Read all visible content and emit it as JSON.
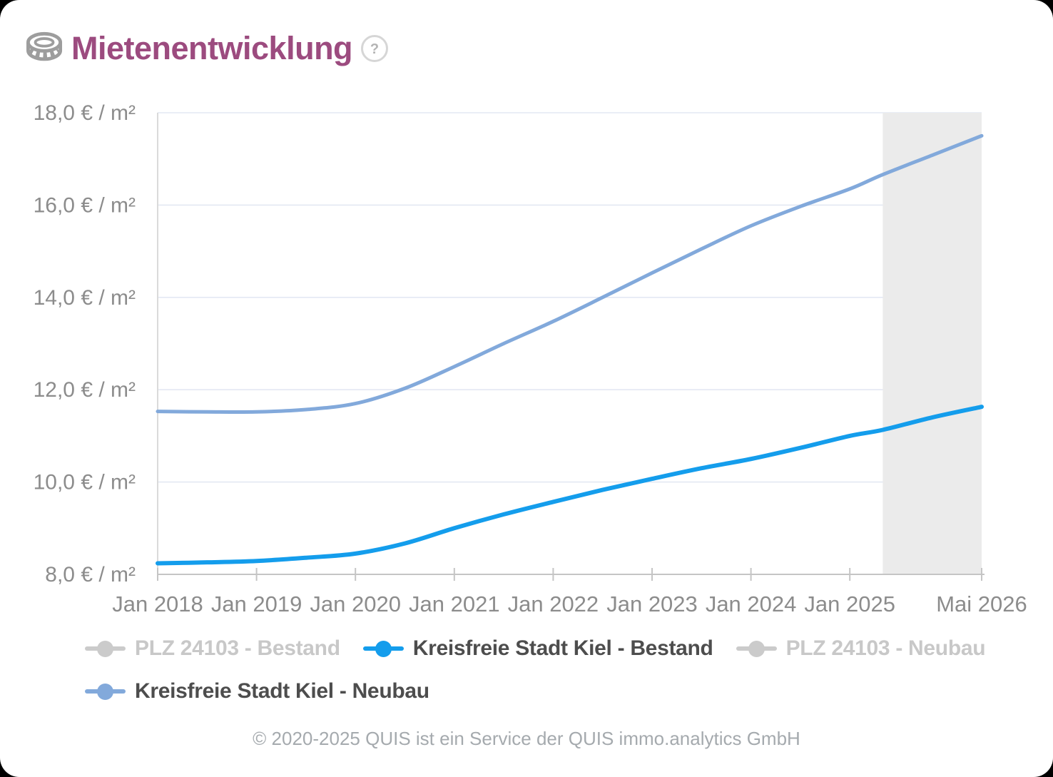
{
  "header": {
    "title": "Mietenentwicklung",
    "icon": "coin-icon",
    "help_icon": "help-icon"
  },
  "footer": {
    "copyright": "© 2020-2025 QUIS ist ein Service der QUIS immo.analytics GmbH"
  },
  "colors": {
    "title": "#9c4b7f",
    "icon_gray": "#9d9d9d",
    "help_ring": "#d6d6d6",
    "help_mark": "#b4b4b4",
    "axis_text": "#8c8c8c",
    "gridline": "#e3e8f3",
    "axis_line": "#c5c5c5",
    "y_axis_line": "#dadada",
    "band": "#ebebeb",
    "bestand_blue": "#149DEC",
    "neubau_blue": "#82A9DB",
    "inactive_gray": "#cbcbcb",
    "legend_active_text": "#4d4d4d",
    "legend_inactive_text": "#c8c8c8",
    "footer_text": "#a5aaae"
  },
  "legend": {
    "rows": [
      [
        0,
        1,
        2
      ],
      [
        3
      ]
    ]
  },
  "chart_data": {
    "type": "line",
    "title": "Mietenentwicklung",
    "xlabel": "",
    "ylabel": "€ / m²",
    "x_unit": "months since Jan 2018",
    "x_range": [
      0,
      100
    ],
    "ylim": [
      8,
      18
    ],
    "grid": true,
    "legend_position": "bottom",
    "y_ticks": [
      {
        "value": 8,
        "label": "8,0 € / m²"
      },
      {
        "value": 10,
        "label": "10,0 € / m²"
      },
      {
        "value": 12,
        "label": "12,0 € / m²"
      },
      {
        "value": 14,
        "label": "14,0 € / m²"
      },
      {
        "value": 16,
        "label": "16,0 € / m²"
      },
      {
        "value": 18,
        "label": "18,0 € / m²"
      }
    ],
    "x_ticks": [
      {
        "m": 0,
        "label": "Jan 2018"
      },
      {
        "m": 12,
        "label": "Jan 2019"
      },
      {
        "m": 24,
        "label": "Jan 2020"
      },
      {
        "m": 36,
        "label": "Jan 2021"
      },
      {
        "m": 48,
        "label": "Jan 2022"
      },
      {
        "m": 60,
        "label": "Jan 2023"
      },
      {
        "m": 72,
        "label": "Jan 2024"
      },
      {
        "m": 84,
        "label": "Jan 2025"
      },
      {
        "m": 100,
        "label": "Mai 2026"
      }
    ],
    "forecast_band": {
      "from": 88,
      "to": 100,
      "color": "#ebebeb"
    },
    "series": [
      {
        "name": "PLZ 24103 - Bestand",
        "color": "#cbcbcb",
        "active": false,
        "width": 6,
        "points": []
      },
      {
        "name": "Kreisfreie Stadt Kiel - Bestand",
        "color": "#149DEC",
        "active": true,
        "width": 6,
        "points": [
          [
            0,
            8.24
          ],
          [
            6,
            8.26
          ],
          [
            12,
            8.29
          ],
          [
            18,
            8.36
          ],
          [
            24,
            8.45
          ],
          [
            30,
            8.67
          ],
          [
            36,
            9.0
          ],
          [
            42,
            9.3
          ],
          [
            48,
            9.57
          ],
          [
            54,
            9.83
          ],
          [
            60,
            10.07
          ],
          [
            66,
            10.3
          ],
          [
            72,
            10.5
          ],
          [
            78,
            10.74
          ],
          [
            84,
            11.0
          ],
          [
            88,
            11.13
          ],
          [
            94,
            11.4
          ],
          [
            100,
            11.63
          ]
        ]
      },
      {
        "name": "PLZ 24103 - Neubau",
        "color": "#cbcbcb",
        "active": false,
        "width": 5,
        "points": []
      },
      {
        "name": "Kreisfreie Stadt Kiel - Neubau",
        "color": "#82A9DB",
        "active": true,
        "width": 5,
        "points": [
          [
            0,
            11.53
          ],
          [
            6,
            11.52
          ],
          [
            12,
            11.52
          ],
          [
            18,
            11.57
          ],
          [
            24,
            11.7
          ],
          [
            30,
            12.03
          ],
          [
            36,
            12.5
          ],
          [
            42,
            13.0
          ],
          [
            48,
            13.48
          ],
          [
            54,
            14.0
          ],
          [
            60,
            14.53
          ],
          [
            66,
            15.05
          ],
          [
            72,
            15.55
          ],
          [
            78,
            15.97
          ],
          [
            84,
            16.35
          ],
          [
            88,
            16.66
          ],
          [
            94,
            17.08
          ],
          [
            100,
            17.5
          ]
        ]
      }
    ]
  }
}
